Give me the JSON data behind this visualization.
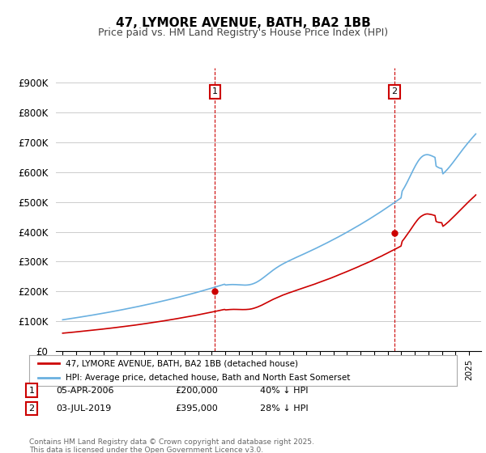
{
  "title": "47, LYMORE AVENUE, BATH, BA2 1BB",
  "subtitle": "Price paid vs. HM Land Registry's House Price Index (HPI)",
  "ylabel_ticks": [
    "£0",
    "£100K",
    "£200K",
    "£300K",
    "£400K",
    "£500K",
    "£600K",
    "£700K",
    "£800K",
    "£900K"
  ],
  "ytick_values": [
    0,
    100000,
    200000,
    300000,
    400000,
    500000,
    600000,
    700000,
    800000,
    900000
  ],
  "ylim": [
    0,
    950000
  ],
  "hpi_color": "#6ab0e0",
  "price_color": "#cc0000",
  "marker1_year": 2006.25,
  "marker2_year": 2019.5,
  "marker1_price": 200000,
  "marker2_price": 395000,
  "legend_line1": "47, LYMORE AVENUE, BATH, BA2 1BB (detached house)",
  "legend_line2": "HPI: Average price, detached house, Bath and North East Somerset",
  "footer": "Contains HM Land Registry data © Crown copyright and database right 2025.\nThis data is licensed under the Open Government Licence v3.0."
}
